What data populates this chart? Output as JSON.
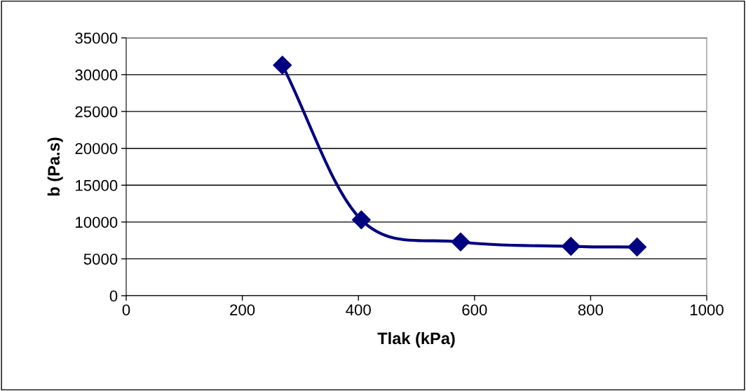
{
  "chart_data": {
    "type": "line",
    "xlabel": "Tlak (kPa)",
    "ylabel": "b (Pa.s)",
    "x": [
      269,
      405,
      576,
      766,
      880
    ],
    "series": [
      {
        "color": "#000080",
        "values": [
          31300,
          10300,
          7300,
          6700,
          6600
        ]
      }
    ],
    "xlim": [
      0,
      1000
    ],
    "xticks": [
      0,
      200,
      400,
      600,
      800,
      1000
    ],
    "ylim": [
      0,
      35000
    ],
    "yticks": [
      0,
      5000,
      10000,
      15000,
      20000,
      25000,
      30000,
      35000
    ],
    "grid": "y",
    "marker": "diamond",
    "line_style": "solid",
    "legend": false
  }
}
